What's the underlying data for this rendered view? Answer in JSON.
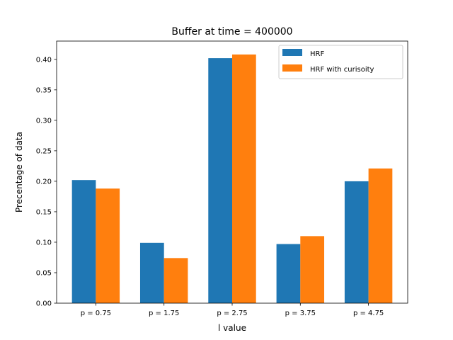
{
  "chart_data": {
    "type": "bar",
    "title": "Buffer at time = 400000",
    "xlabel": "l value",
    "ylabel": "Precentage of data",
    "categories": [
      "p = 0.75",
      "p = 1.75",
      "p = 2.75",
      "p = 3.75",
      "p = 4.75"
    ],
    "series": [
      {
        "name": "HRF",
        "color": "#1f77b4",
        "values": [
          0.202,
          0.099,
          0.402,
          0.097,
          0.2
        ]
      },
      {
        "name": "HRF with curisoity",
        "color": "#ff7f0e",
        "values": [
          0.188,
          0.074,
          0.408,
          0.11,
          0.221
        ]
      }
    ],
    "ylim": [
      0,
      0.43
    ],
    "yticks": [
      "0.00",
      "0.05",
      "0.10",
      "0.15",
      "0.20",
      "0.25",
      "0.30",
      "0.35",
      "0.40"
    ],
    "grid": false,
    "legend_position": "top-right"
  }
}
